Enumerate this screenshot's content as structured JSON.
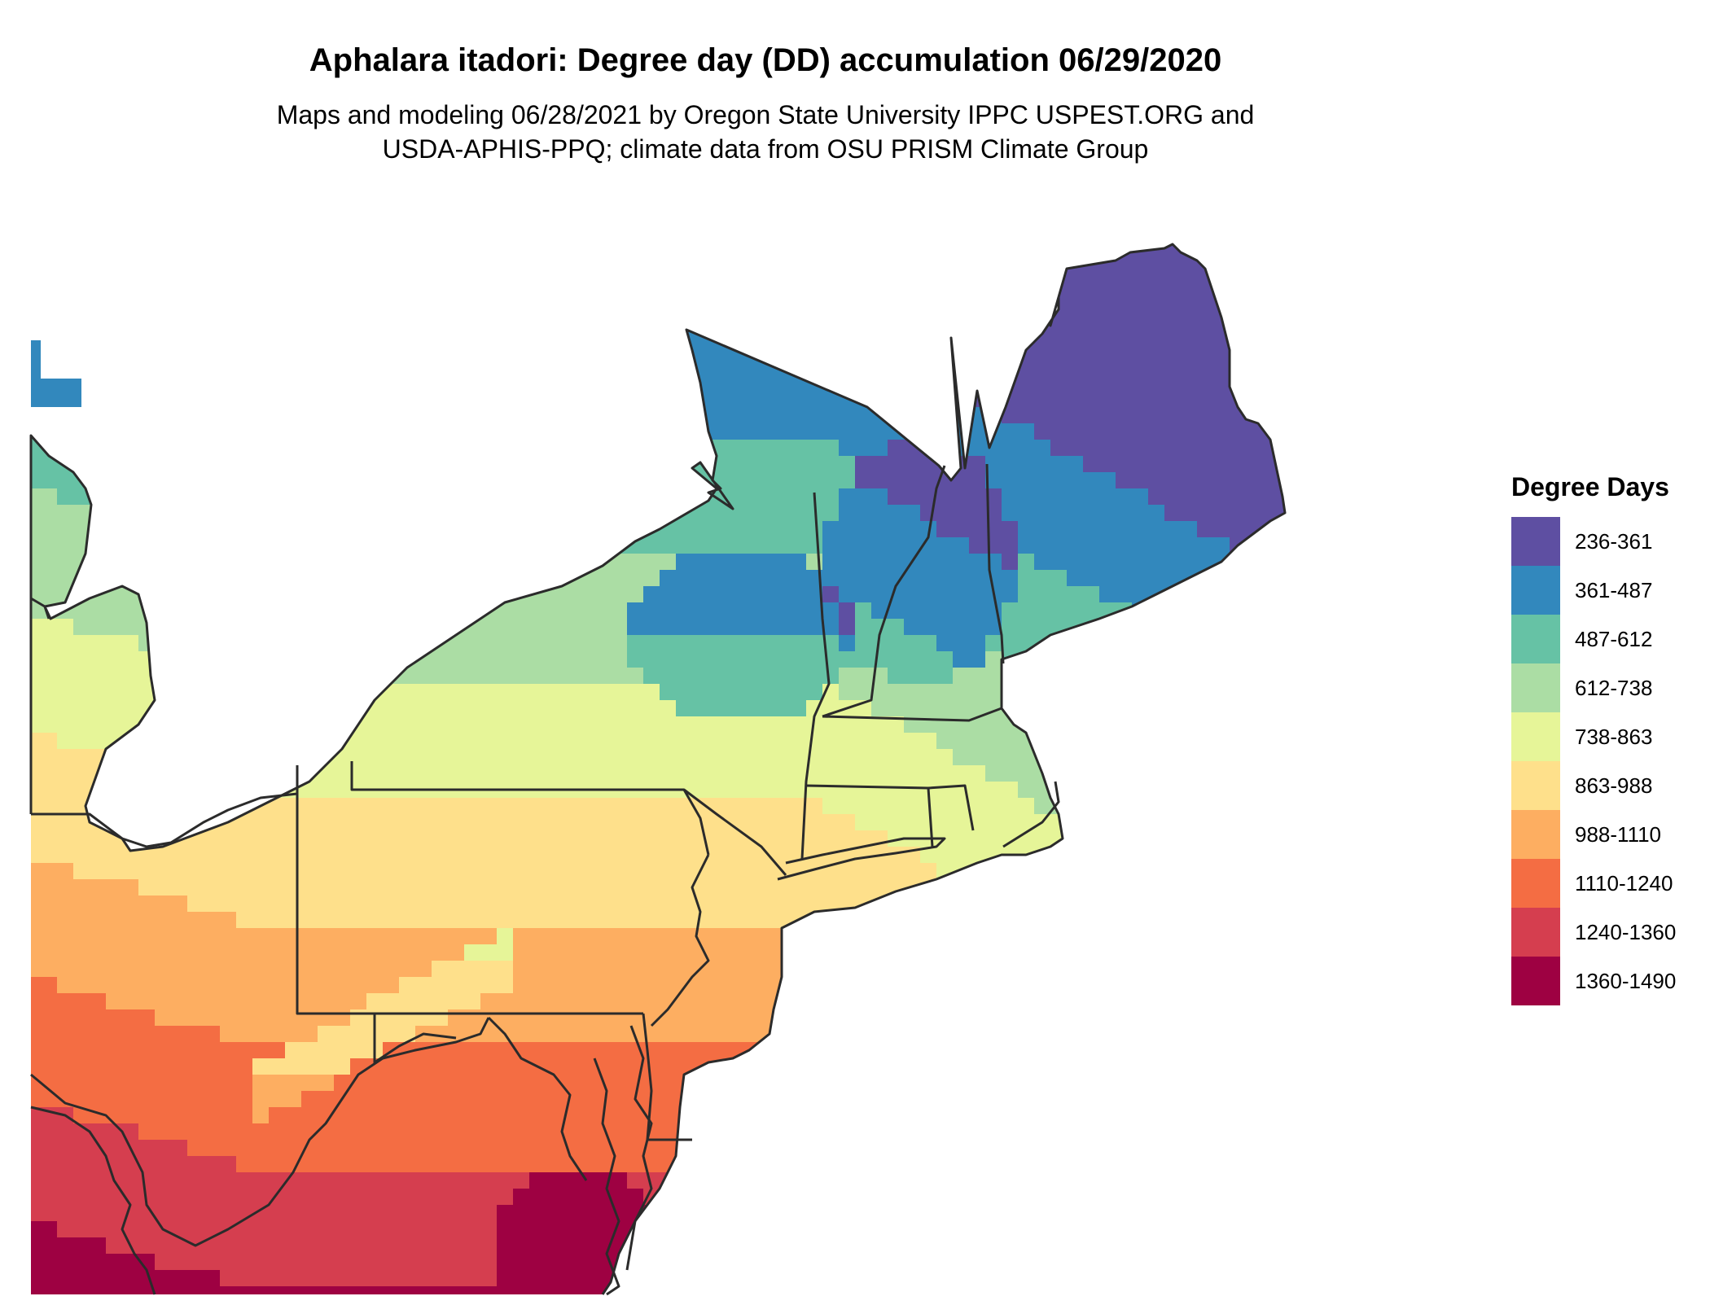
{
  "title": "Aphalara itadori: Degree day (DD) accumulation 06/29/2020",
  "subtitle": {
    "line1": "Maps and modeling 06/28/2021 by Oregon State University IPPC USPEST.ORG and",
    "line2": "USDA-APHIS-PPQ; climate data from OSU PRISM Climate Group"
  },
  "legend": {
    "title": "Degree Days",
    "items": [
      {
        "label": "236-361",
        "color": "#5e4fa2"
      },
      {
        "label": "361-487",
        "color": "#3288bd"
      },
      {
        "label": "487-612",
        "color": "#66c2a5"
      },
      {
        "label": "612-738",
        "color": "#abdda4"
      },
      {
        "label": "738-863",
        "color": "#e6f598"
      },
      {
        "label": "863-988",
        "color": "#fee08b"
      },
      {
        "label": "988-1110",
        "color": "#fdae61"
      },
      {
        "label": "1110-1240",
        "color": "#f46d43"
      },
      {
        "label": "1240-1360",
        "color": "#d53e4f"
      },
      {
        "label": "1360-1490",
        "color": "#9e0142"
      }
    ]
  },
  "map": {
    "region": "Northeastern United States",
    "border_color": "#2b2b2b",
    "background": "#ffffff"
  }
}
